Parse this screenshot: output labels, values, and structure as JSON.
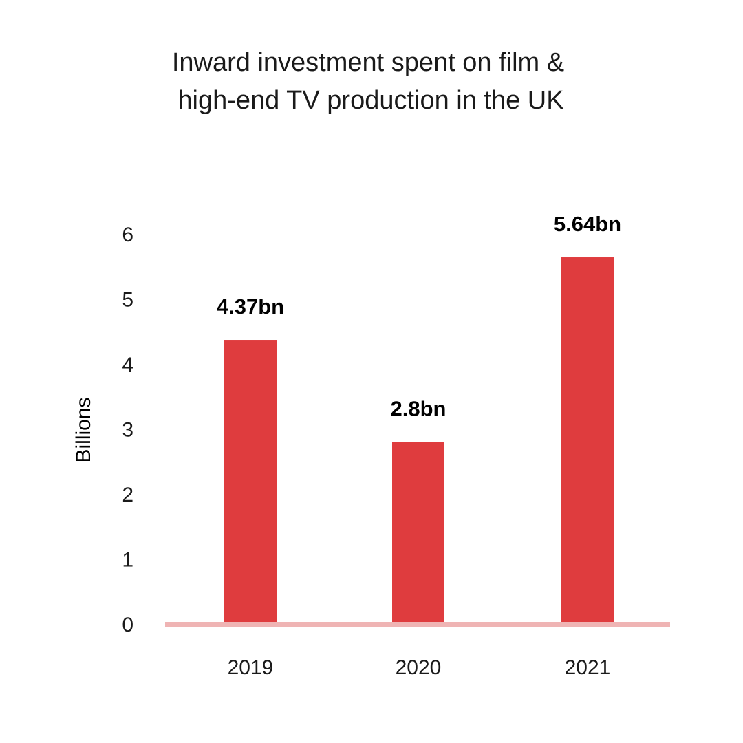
{
  "chart_data": {
    "type": "bar",
    "title": [
      "Inward investment spent on film &",
      "high-end TV production in the UK"
    ],
    "ylabel": "Billions",
    "xlabel": "",
    "categories": [
      "2019",
      "2020",
      "2021"
    ],
    "values": [
      4.37,
      2.8,
      5.64
    ],
    "data_labels": [
      "4.37bn",
      "2.8bn",
      "5.64bn"
    ],
    "ylim": [
      0,
      6
    ],
    "yticks": [
      0,
      1,
      2,
      3,
      4,
      5,
      6
    ],
    "grid": false,
    "legend": "none",
    "colors": {
      "bar": "#DF3C3E",
      "baseline": "#EFB4B4",
      "text": "#1a1a1a"
    }
  }
}
